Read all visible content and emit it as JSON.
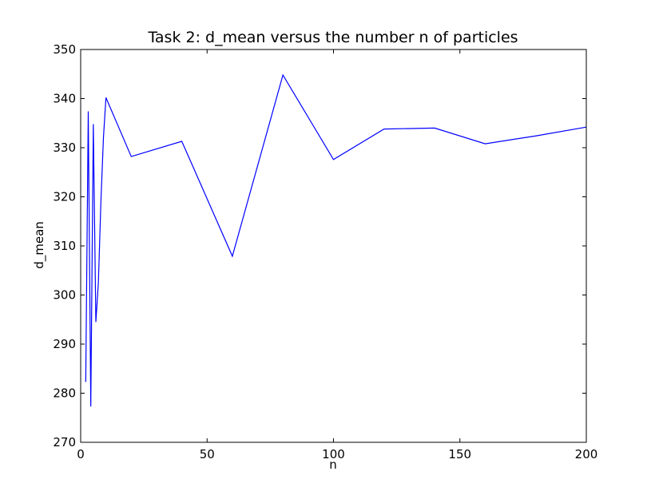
{
  "chart_data": {
    "type": "line",
    "title": "Task 2: d_mean versus the number n of particles",
    "xlabel": "n",
    "ylabel": "d_mean",
    "xlim": [
      0,
      200
    ],
    "ylim": [
      270,
      350
    ],
    "xticks": [
      "0",
      "50",
      "100",
      "150",
      "200"
    ],
    "yticks": [
      "270",
      "280",
      "290",
      "300",
      "310",
      "320",
      "330",
      "340",
      "350"
    ],
    "grid": false,
    "legend": "none",
    "series": [
      {
        "color": "#0000ff",
        "x": [
          2,
          3,
          4,
          5,
          6,
          7,
          8,
          9,
          10,
          20,
          40,
          60,
          80,
          100,
          120,
          140,
          160,
          180,
          200
        ],
        "y": [
          282.3,
          337.4,
          277.3,
          334.8,
          294.5,
          302.5,
          319.0,
          332.0,
          340.2,
          328.2,
          331.3,
          307.9,
          344.8,
          327.6,
          333.8,
          334.0,
          330.8,
          332.4,
          334.2
        ]
      }
    ]
  }
}
